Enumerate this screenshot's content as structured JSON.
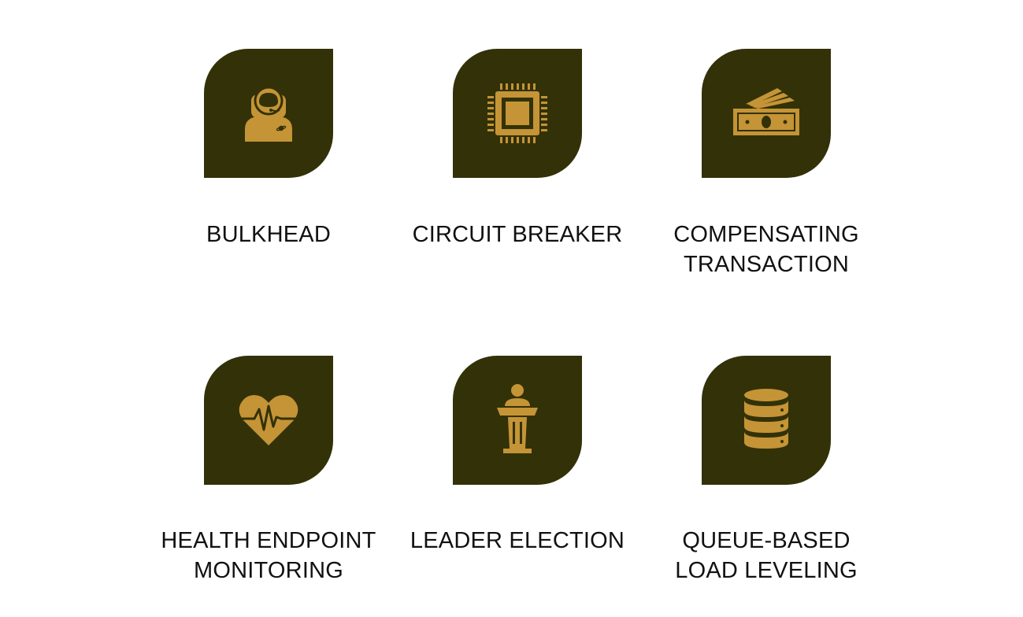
{
  "colors": {
    "tile_background": "#333108",
    "icon": "#C49436",
    "text": "#111111",
    "background": "#FFFFFF"
  },
  "patterns": [
    {
      "id": "bulkhead",
      "icon": "astronaut-icon",
      "lines": [
        "BULKHEAD"
      ]
    },
    {
      "id": "circuit-breaker",
      "icon": "microchip-icon",
      "lines": [
        "CIRCUIT BREAKER"
      ]
    },
    {
      "id": "compensating-transaction",
      "icon": "money-icon",
      "lines": [
        "COMPENSATING",
        "TRANSACTION"
      ]
    },
    {
      "id": "health-endpoint-monitoring",
      "icon": "heartbeat-icon",
      "lines": [
        "HEALTH ENDPOINT",
        "MONITORING"
      ]
    },
    {
      "id": "leader-election",
      "icon": "podium-speaker-icon",
      "lines": [
        "LEADER ELECTION"
      ]
    },
    {
      "id": "queue-based-load-leveling",
      "icon": "database-icon",
      "lines": [
        "QUEUE-BASED",
        "LOAD LEVELING"
      ]
    }
  ]
}
